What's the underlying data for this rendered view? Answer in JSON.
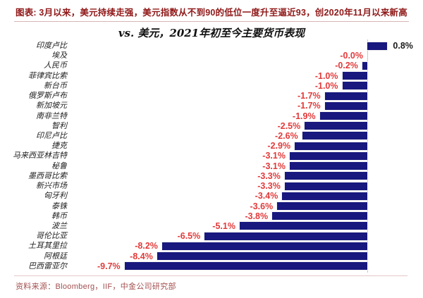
{
  "header": {
    "title": "图表: 3月以来，美元持续走强，美元指数从不到90的低位一度升至逼近93，创2020年11月以来新高"
  },
  "chart_data": {
    "type": "bar",
    "orientation": "horizontal",
    "title": "vs. 美元，2021年初至今主要货币表现",
    "categories": [
      "印度卢比",
      "埃及",
      "人民币",
      "菲律宾比索",
      "新台币",
      "俄罗斯卢布",
      "新加坡元",
      "南非兰特",
      "智利",
      "印尼卢比",
      "捷克",
      "马来西亚林吉特",
      "秘鲁",
      "墨西哥比索",
      "新兴市场",
      "匈牙利",
      "泰铢",
      "韩币",
      "波兰",
      "哥伦比亚",
      "土耳其里拉",
      "阿根廷",
      "巴西雷亚尔"
    ],
    "values": [
      0.8,
      -0.0,
      -0.2,
      -1.0,
      -1.0,
      -1.7,
      -1.7,
      -1.9,
      -2.5,
      -2.6,
      -2.9,
      -3.1,
      -3.1,
      -3.3,
      -3.3,
      -3.4,
      -3.6,
      -3.8,
      -5.1,
      -6.5,
      -8.2,
      -8.4,
      -9.7
    ],
    "value_labels": [
      "0.8%",
      "-0.0%",
      "-0.2%",
      "-1.0%",
      "-1.0%",
      "-1.7%",
      "-1.7%",
      "-1.9%",
      "-2.5%",
      "-2.6%",
      "-2.9%",
      "-3.1%",
      "-3.1%",
      "-3.3%",
      "-3.3%",
      "-3.4%",
      "-3.6%",
      "-3.8%",
      "-5.1%",
      "-6.5%",
      "-8.2%",
      "-8.4%",
      "-9.7%"
    ],
    "xlim": [
      -10.5,
      1.5
    ],
    "grid": false,
    "legend": false,
    "unit": "%",
    "colors": {
      "bar": "#18187e",
      "negative_label": "#e23a3a",
      "positive_label": "#1a1a1a"
    }
  },
  "footer": {
    "source": "资料来源：Bloomberg，IIF，中金公司研究部"
  }
}
